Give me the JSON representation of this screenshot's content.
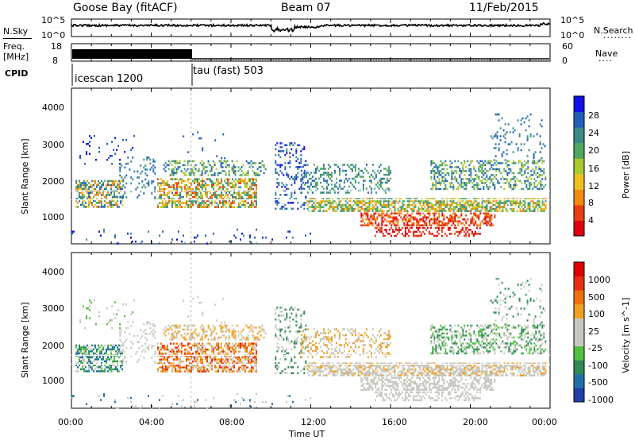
{
  "header": {
    "station": "Goose Bay (fitACF)",
    "beam": "Beam 07",
    "date": "11/Feb/2015"
  },
  "nsky_panel": {
    "left_label": "N.Sky",
    "right_label": "N.Search",
    "right_dots": "........",
    "left_ticks": [
      "10^5",
      "10^0"
    ],
    "right_ticks": [
      "10^5",
      "10^0"
    ]
  },
  "freq_panel": {
    "left_label_1": "Freq.",
    "left_label_2": "[MHz]",
    "right_label": "Nave",
    "right_dots": "....",
    "left_ticks": [
      "18",
      "8"
    ],
    "right_ticks": [
      "60",
      "0"
    ]
  },
  "cpid_panel": {
    "label": "CPID",
    "modes": [
      {
        "name": "icescan 1200",
        "start_hour": 0
      },
      {
        "name": "tau (fast) 503",
        "start_hour": 6
      }
    ]
  },
  "chart_data": [
    {
      "type": "heatmap",
      "name": "power",
      "ylabel": "Slant Range [km]",
      "ylim": [
        180,
        4500
      ],
      "xlim_hours": [
        0,
        24
      ],
      "y_ticks": [
        "1000",
        "2000",
        "3000",
        "4000"
      ],
      "colorbar_label": "Power [dB]",
      "colorbar_ticks": [
        "4",
        "8",
        "12",
        "16",
        "20",
        "24",
        "28"
      ],
      "colorbar_colors": [
        "#1010e8",
        "#2060b8",
        "#3a8a8a",
        "#4fa860",
        "#a8c830",
        "#f0c020",
        "#f08a10",
        "#e84010",
        "#e00010"
      ]
    },
    {
      "type": "heatmap",
      "name": "velocity",
      "ylabel": "Slant Range [km]",
      "ylim": [
        180,
        4500
      ],
      "xlim_hours": [
        0,
        24
      ],
      "y_ticks": [
        "1000",
        "2000",
        "3000",
        "4000"
      ],
      "colorbar_label": "Velocity [m s^-1]",
      "colorbar_ticks": [
        "1000",
        "500",
        "100",
        "25",
        "-25",
        "-100",
        "-500",
        "-1000"
      ],
      "colorbar_colors": [
        "#2040a8",
        "#2070a8",
        "#308858",
        "#50c040",
        "#c8c8c0",
        "#c8c8c0",
        "#f0a020",
        "#f07010",
        "#e83010",
        "#e00000"
      ]
    }
  ],
  "x_axis": {
    "ticks": [
      "00:00",
      "04:00",
      "08:00",
      "12:00",
      "16:00",
      "20:00",
      "00:00"
    ],
    "label": "Time UT"
  }
}
